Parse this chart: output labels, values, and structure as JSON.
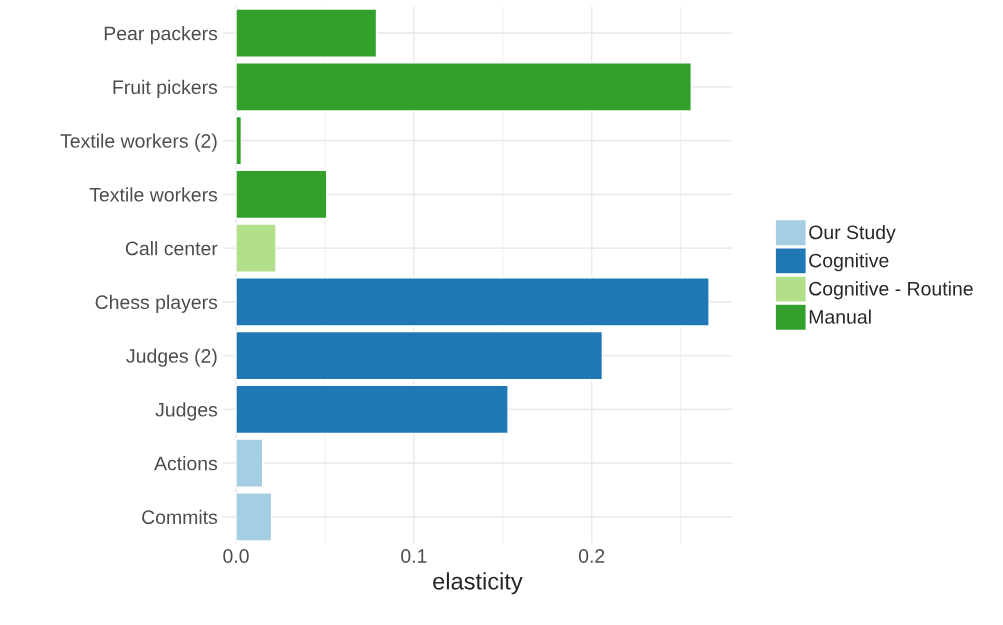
{
  "chart_data": {
    "type": "bar",
    "orientation": "horizontal",
    "xlabel": "elasticity",
    "categories": [
      "Pear packers",
      "Fruit pickers",
      "Textile workers (2)",
      "Textile workers",
      "Call center",
      "Chess players",
      "Judges (2)",
      "Judges",
      "Actions",
      "Commits"
    ],
    "series": [
      {
        "name": "Our Study",
        "color": "#a6cee3",
        "values": [
          null,
          null,
          null,
          null,
          null,
          null,
          null,
          null,
          0.015,
          0.02
        ]
      },
      {
        "name": "Cognitive",
        "color": "#1f78b4",
        "values": [
          null,
          null,
          null,
          null,
          null,
          0.266,
          0.206,
          0.153,
          null,
          null
        ]
      },
      {
        "name": "Cognitive - Routine",
        "color": "#b2df8a",
        "values": [
          null,
          null,
          null,
          null,
          0.0225,
          null,
          null,
          null,
          null,
          null
        ]
      },
      {
        "name": "Manual",
        "color": "#33a02c",
        "values": [
          0.079,
          0.256,
          0.003,
          0.051,
          null,
          null,
          null,
          null,
          null,
          null
        ]
      }
    ],
    "xlim": [
      -0.0075,
      0.279
    ],
    "xticks": [
      {
        "value": 0,
        "label": "0.0"
      },
      0.1,
      0.2
    ],
    "grid": true,
    "legend": "right"
  }
}
